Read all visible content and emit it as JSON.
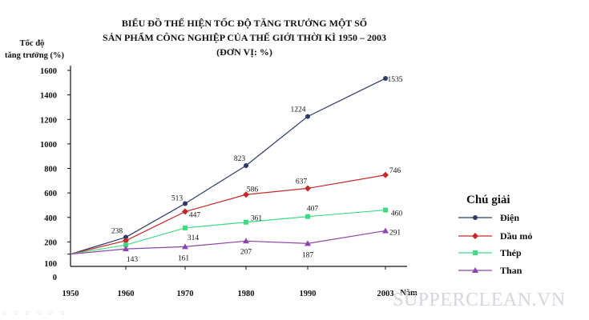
{
  "chart_data": {
    "type": "line",
    "title_lines": [
      "BIỂU ĐỒ THỂ HIỆN TỐC ĐỘ TĂNG TRƯỞNG MỘT SỐ",
      "SẢN PHẨM CÔNG NGHIỆP CỦA THẾ GIỚI THỜI KÌ 1950 – 2003",
      "(ĐƠN VỊ: %)"
    ],
    "ylabel_lines": [
      "Tốc độ",
      "tăng trưởng (%)"
    ],
    "xlabel": "Năm",
    "x": [
      1950,
      1960,
      1970,
      1980,
      1990,
      2003
    ],
    "x_tick_labels": [
      "1950",
      "1960",
      "1970",
      "1980",
      "1990",
      "2003"
    ],
    "y_tick_values": [
      0,
      100,
      200,
      400,
      600,
      800,
      1000,
      1200,
      1400,
      1600
    ],
    "y_tick_labels": [
      "0",
      "100",
      "200",
      "400",
      "600",
      "800",
      "1000",
      "1200",
      "1400",
      "1600"
    ],
    "ylim": [
      0,
      1600
    ],
    "grid": false,
    "legend_title": "Chú giải",
    "legend_position": "right",
    "series": [
      {
        "name": "Điện",
        "values": [
          100,
          238,
          513,
          823,
          1224,
          1535
        ],
        "labels": [
          "",
          "238",
          "513",
          "823",
          "1224",
          "1535"
        ],
        "color": "#2b3a67",
        "marker": "circle"
      },
      {
        "name": "Dầu mỏ",
        "values": [
          100,
          210,
          447,
          586,
          637,
          746
        ],
        "labels": [
          "",
          "",
          "447",
          "586",
          "637",
          "746"
        ],
        "color": "#c62828",
        "marker": "diamond"
      },
      {
        "name": "Thép",
        "values": [
          100,
          175,
          314,
          361,
          407,
          460
        ],
        "labels": [
          "",
          "",
          "314",
          "361",
          "407",
          "460"
        ],
        "color": "#3ddc84",
        "marker": "square"
      },
      {
        "name": "Than",
        "values": [
          100,
          143,
          161,
          207,
          187,
          291
        ],
        "labels": [
          "",
          "143",
          "161",
          "207",
          "187",
          "291"
        ],
        "color": "#8e44ad",
        "marker": "triangle"
      }
    ]
  },
  "watermark": "SUPPERCLEAN.VN"
}
